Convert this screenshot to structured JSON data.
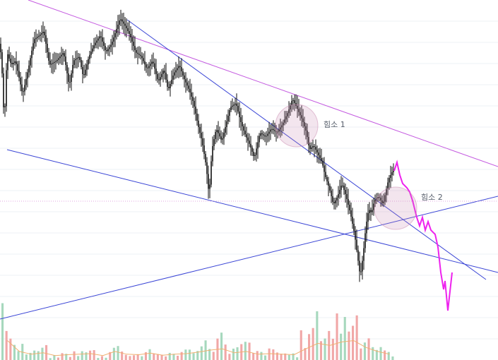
{
  "chart_data": {
    "type": "candlestick",
    "annotations": [
      {
        "label": "힘소 1"
      },
      {
        "label": "힘소 2"
      }
    ],
    "price_shape": [
      [
        0,
        0.12
      ],
      [
        4,
        0.2
      ],
      [
        8,
        0.52
      ],
      [
        12,
        0.18
      ],
      [
        18,
        0.24
      ],
      [
        24,
        0.22
      ],
      [
        34,
        0.38
      ],
      [
        42,
        0.26
      ],
      [
        50,
        0.12
      ],
      [
        58,
        0.1
      ],
      [
        64,
        0.08
      ],
      [
        72,
        0.24
      ],
      [
        82,
        0.22
      ],
      [
        92,
        0.18
      ],
      [
        100,
        0.34
      ],
      [
        106,
        0.22
      ],
      [
        114,
        0.2
      ],
      [
        120,
        0.3
      ],
      [
        128,
        0.2
      ],
      [
        136,
        0.14
      ],
      [
        144,
        0.1
      ],
      [
        152,
        0.18
      ],
      [
        160,
        0.14
      ],
      [
        166,
        0.08
      ],
      [
        172,
        0.02
      ],
      [
        180,
        0.06
      ],
      [
        186,
        0.1
      ],
      [
        194,
        0.18
      ],
      [
        202,
        0.2
      ],
      [
        210,
        0.26
      ],
      [
        218,
        0.22
      ],
      [
        226,
        0.32
      ],
      [
        234,
        0.26
      ],
      [
        240,
        0.36
      ],
      [
        248,
        0.28
      ],
      [
        256,
        0.24
      ],
      [
        262,
        0.3
      ],
      [
        270,
        0.36
      ],
      [
        276,
        0.42
      ],
      [
        282,
        0.52
      ],
      [
        288,
        0.6
      ],
      [
        294,
        0.72
      ],
      [
        298,
        0.86
      ],
      [
        302,
        0.64
      ],
      [
        308,
        0.54
      ],
      [
        316,
        0.6
      ],
      [
        322,
        0.52
      ],
      [
        328,
        0.44
      ],
      [
        336,
        0.42
      ],
      [
        342,
        0.5
      ],
      [
        348,
        0.56
      ],
      [
        356,
        0.62
      ],
      [
        362,
        0.68
      ],
      [
        370,
        0.56
      ],
      [
        378,
        0.58
      ],
      [
        386,
        0.54
      ],
      [
        394,
        0.56
      ],
      [
        402,
        0.52
      ],
      [
        410,
        0.46
      ],
      [
        416,
        0.4
      ],
      [
        422,
        0.44
      ],
      [
        430,
        0.5
      ],
      [
        436,
        0.56
      ],
      [
        440,
        0.64
      ],
      [
        446,
        0.62
      ],
      [
        452,
        0.66
      ],
      [
        458,
        0.7
      ],
      [
        462,
        0.76
      ],
      [
        468,
        0.82
      ],
      [
        474,
        0.9
      ],
      [
        480,
        0.86
      ],
      [
        486,
        0.8
      ],
      [
        492,
        0.86
      ],
      [
        498,
        0.94
      ],
      [
        504,
        1.04
      ],
      [
        508,
        1.14
      ],
      [
        512,
        1.24
      ],
      [
        516,
        1.14
      ],
      [
        520,
        1.0
      ],
      [
        524,
        0.92
      ],
      [
        528,
        0.94
      ],
      [
        532,
        0.88
      ],
      [
        538,
        0.86
      ],
      [
        544,
        0.9
      ],
      [
        548,
        0.84
      ],
      [
        552,
        0.78
      ],
      [
        558,
        0.74
      ]
    ],
    "projection_shape": [
      [
        558,
        0.74
      ],
      [
        562,
        0.7
      ],
      [
        566,
        0.76
      ],
      [
        570,
        0.8
      ],
      [
        576,
        0.82
      ],
      [
        580,
        0.84
      ],
      [
        584,
        0.88
      ],
      [
        590,
        0.96
      ],
      [
        594,
        1.0
      ],
      [
        598,
        0.96
      ],
      [
        602,
        1.02
      ],
      [
        606,
        0.98
      ],
      [
        610,
        1.02
      ],
      [
        616,
        1.04
      ],
      [
        620,
        1.1
      ],
      [
        624,
        1.22
      ],
      [
        628,
        1.3
      ],
      [
        630,
        1.26
      ],
      [
        634,
        1.4
      ],
      [
        638,
        1.28
      ],
      [
        640,
        1.22
      ]
    ],
    "volume_levels": [
      0.6,
      0.2,
      0.1,
      0.15,
      0.05,
      0.08,
      0.1,
      0.12,
      0.05,
      0.2,
      0.1,
      0.08,
      0.14,
      0.06,
      0.1,
      0.12,
      0.18,
      0.25,
      0.3,
      0.15,
      0.2,
      0.1,
      0.12,
      0.1,
      0.08,
      0.3,
      0.5,
      0.42,
      0.55,
      0.6,
      0.35,
      0.2,
      0.1
    ],
    "grid": true
  }
}
